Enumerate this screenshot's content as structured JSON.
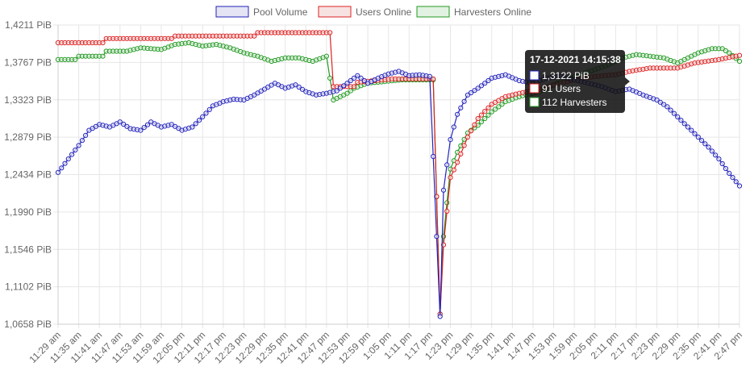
{
  "chart_data": {
    "type": "line",
    "legend": [
      {
        "name": "Pool Volume",
        "color": "#2222bb",
        "fill": "#e4e4f4"
      },
      {
        "name": "Users Online",
        "color": "#dd2222",
        "fill": "#f7e2e2"
      },
      {
        "name": "Harvesters Online",
        "color": "#229922",
        "fill": "#e2f2e2"
      }
    ],
    "y_ticks": [
      "1,0658 PiB",
      "1,1102 PiB",
      "1,1546 PiB",
      "1,1990 PiB",
      "1,2434 PiB",
      "1,2879 PiB",
      "1,3323 PiB",
      "1,3767 PiB",
      "1,4211 PiB"
    ],
    "ylim": [
      1.0658,
      1.4211
    ],
    "x_ticks": [
      "11:29 am",
      "11:35 am",
      "11:41 am",
      "11:47 am",
      "11:53 am",
      "11:59 am",
      "12:05 pm",
      "12:11 pm",
      "12:17 pm",
      "12:23 pm",
      "12:29 pm",
      "12:35 pm",
      "12:41 pm",
      "12:47 pm",
      "12:53 pm",
      "12:59 pm",
      "1:05 pm",
      "1:11 pm",
      "1:17 pm",
      "1:23 pm",
      "1:29 pm",
      "1:35 pm",
      "1:41 pm",
      "1:47 pm",
      "1:53 pm",
      "1:59 pm",
      "2:05 pm",
      "2:11 pm",
      "2:17 pm",
      "2:23 pm",
      "2:29 pm",
      "2:35 pm",
      "2:41 pm",
      "2:47 pm"
    ],
    "xlim_minutes": [
      0,
      198
    ],
    "series": [
      {
        "name": "Pool Volume",
        "color": "#2222bb",
        "points": [
          [
            0,
            1.246
          ],
          [
            3,
            1.262
          ],
          [
            6,
            1.278
          ],
          [
            9,
            1.296
          ],
          [
            12,
            1.303
          ],
          [
            15,
            1.3
          ],
          [
            18,
            1.306
          ],
          [
            21,
            1.298
          ],
          [
            24,
            1.296
          ],
          [
            27,
            1.306
          ],
          [
            30,
            1.3
          ],
          [
            33,
            1.303
          ],
          [
            36,
            1.296
          ],
          [
            39,
            1.3
          ],
          [
            42,
            1.312
          ],
          [
            45,
            1.325
          ],
          [
            48,
            1.33
          ],
          [
            51,
            1.333
          ],
          [
            54,
            1.332
          ],
          [
            57,
            1.338
          ],
          [
            60,
            1.345
          ],
          [
            63,
            1.352
          ],
          [
            66,
            1.346
          ],
          [
            69,
            1.35
          ],
          [
            72,
            1.342
          ],
          [
            75,
            1.338
          ],
          [
            78,
            1.34
          ],
          [
            81,
            1.343
          ],
          [
            84,
            1.352
          ],
          [
            87,
            1.361
          ],
          [
            90,
            1.352
          ],
          [
            93,
            1.358
          ],
          [
            96,
            1.363
          ],
          [
            99,
            1.366
          ],
          [
            102,
            1.361
          ],
          [
            105,
            1.362
          ],
          [
            108,
            1.36
          ],
          [
            111,
            1.075
          ],
          [
            112,
            1.225
          ],
          [
            114,
            1.285
          ],
          [
            116,
            1.315
          ],
          [
            119,
            1.338
          ],
          [
            122,
            1.346
          ],
          [
            126,
            1.358
          ],
          [
            130,
            1.362
          ],
          [
            134,
            1.355
          ],
          [
            138,
            1.352
          ],
          [
            142,
            1.358
          ],
          [
            146,
            1.36
          ],
          [
            150,
            1.356
          ],
          [
            154,
            1.352
          ],
          [
            158,
            1.348
          ],
          [
            162,
            1.342
          ],
          [
            166,
            1.345
          ],
          [
            170,
            1.338
          ],
          [
            174,
            1.332
          ],
          [
            177,
            1.324
          ],
          [
            180,
            1.312
          ],
          [
            183,
            1.3
          ],
          [
            186,
            1.288
          ],
          [
            189,
            1.276
          ],
          [
            192,
            1.262
          ],
          [
            195,
            1.245
          ],
          [
            198,
            1.23
          ]
        ]
      },
      {
        "name": "Users Online",
        "color": "#dd2222",
        "points": [
          [
            0,
            1.4
          ],
          [
            13,
            1.4
          ],
          [
            14,
            1.405
          ],
          [
            33,
            1.405
          ],
          [
            34,
            1.408
          ],
          [
            57,
            1.408
          ],
          [
            58,
            1.412
          ],
          [
            79,
            1.412
          ],
          [
            80,
            1.348
          ],
          [
            86,
            1.348
          ],
          [
            87,
            1.353
          ],
          [
            97,
            1.357
          ],
          [
            109,
            1.357
          ],
          [
            111,
            1.078
          ],
          [
            112,
            1.16
          ],
          [
            114,
            1.24
          ],
          [
            116,
            1.258
          ],
          [
            119,
            1.288
          ],
          [
            122,
            1.31
          ],
          [
            126,
            1.327
          ],
          [
            130,
            1.336
          ],
          [
            134,
            1.34
          ],
          [
            140,
            1.345
          ],
          [
            146,
            1.352
          ],
          [
            150,
            1.356
          ],
          [
            156,
            1.36
          ],
          [
            162,
            1.362
          ],
          [
            166,
            1.366
          ],
          [
            172,
            1.37
          ],
          [
            180,
            1.37
          ],
          [
            185,
            1.376
          ],
          [
            192,
            1.38
          ],
          [
            198,
            1.385
          ]
        ]
      },
      {
        "name": "Harvesters Online",
        "color": "#229922",
        "points": [
          [
            0,
            1.38
          ],
          [
            5,
            1.38
          ],
          [
            6,
            1.384
          ],
          [
            13,
            1.384
          ],
          [
            14,
            1.39
          ],
          [
            20,
            1.39
          ],
          [
            24,
            1.394
          ],
          [
            30,
            1.392
          ],
          [
            34,
            1.398
          ],
          [
            38,
            1.4
          ],
          [
            42,
            1.396
          ],
          [
            46,
            1.398
          ],
          [
            50,
            1.394
          ],
          [
            54,
            1.388
          ],
          [
            58,
            1.384
          ],
          [
            62,
            1.378
          ],
          [
            66,
            1.382
          ],
          [
            70,
            1.382
          ],
          [
            74,
            1.378
          ],
          [
            78,
            1.384
          ],
          [
            80,
            1.332
          ],
          [
            84,
            1.34
          ],
          [
            86,
            1.346
          ],
          [
            90,
            1.352
          ],
          [
            100,
            1.356
          ],
          [
            109,
            1.356
          ],
          [
            111,
            1.078
          ],
          [
            112,
            1.17
          ],
          [
            114,
            1.25
          ],
          [
            116,
            1.27
          ],
          [
            119,
            1.293
          ],
          [
            122,
            1.302
          ],
          [
            126,
            1.318
          ],
          [
            130,
            1.33
          ],
          [
            134,
            1.336
          ],
          [
            140,
            1.342
          ],
          [
            146,
            1.354
          ],
          [
            150,
            1.36
          ],
          [
            156,
            1.368
          ],
          [
            160,
            1.374
          ],
          [
            164,
            1.382
          ],
          [
            168,
            1.386
          ],
          [
            172,
            1.384
          ],
          [
            176,
            1.382
          ],
          [
            180,
            1.376
          ],
          [
            186,
            1.388
          ],
          [
            190,
            1.393
          ],
          [
            193,
            1.393
          ],
          [
            195,
            1.388
          ],
          [
            198,
            1.378
          ]
        ]
      }
    ],
    "tooltip": {
      "title": "17-12-2021 14:15:38",
      "lines": [
        "1,3122 PiB",
        "91 Users",
        "112 Harvesters"
      ],
      "colors": [
        "#2222bb",
        "#dd2222",
        "#229922"
      ]
    }
  }
}
